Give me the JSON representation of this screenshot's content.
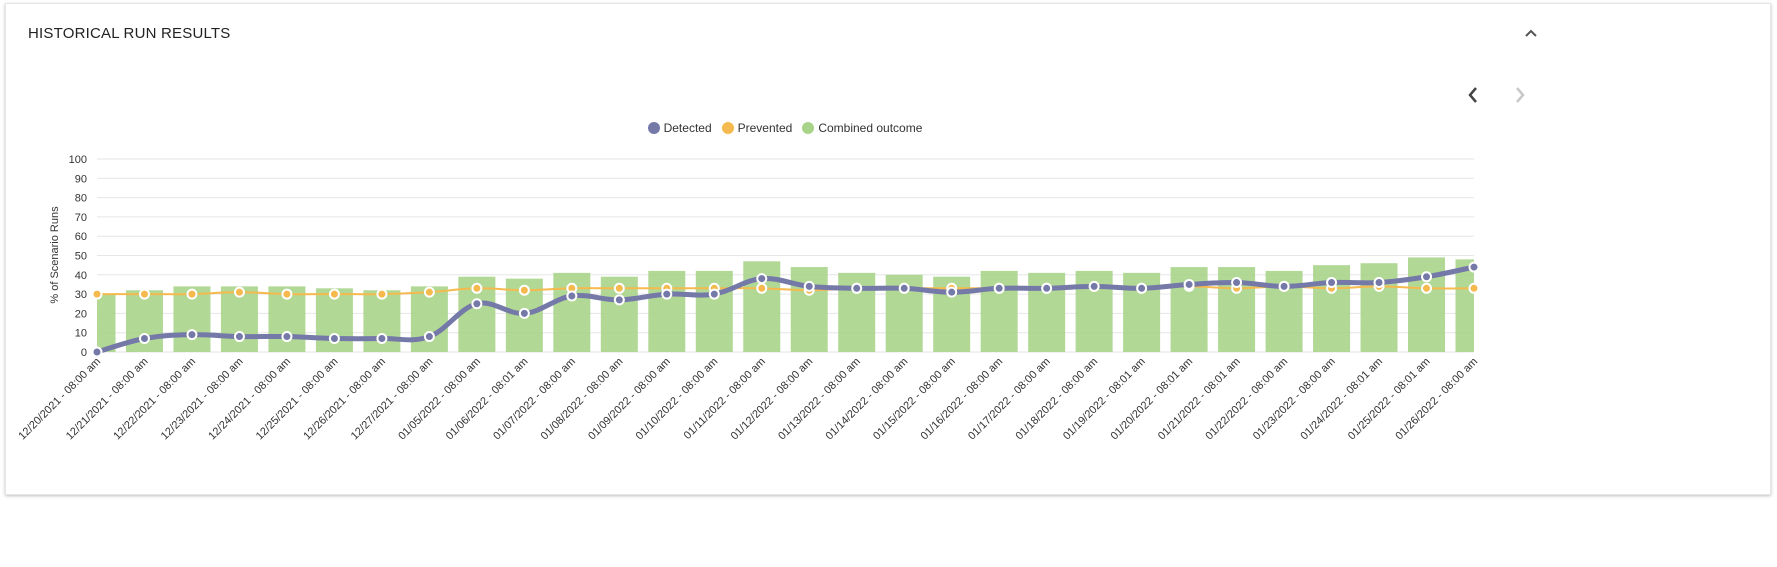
{
  "panel": {
    "title": "HISTORICAL RUN RESULTS"
  },
  "icons": {
    "collapse": "chevron-up-icon",
    "prev": "chevron-left-icon",
    "next": "chevron-right-icon"
  },
  "chart_data": {
    "type": "bar+line",
    "ylabel": "% of Scenario Runs",
    "xlabel": "",
    "ylim": [
      0,
      100
    ],
    "yticks": [
      0,
      10,
      20,
      30,
      40,
      50,
      60,
      70,
      80,
      90,
      100
    ],
    "grid": true,
    "legend_position": "top-center",
    "categories": [
      "12/20/2021 - 08:00 am",
      "12/21/2021 - 08:00 am",
      "12/22/2021 - 08:00 am",
      "12/23/2021 - 08:00 am",
      "12/24/2021 - 08:00 am",
      "12/25/2021 - 08:00 am",
      "12/26/2021 - 08:00 am",
      "12/27/2021 - 08:00 am",
      "01/05/2022 - 08:00 am",
      "01/06/2022 - 08:01 am",
      "01/07/2022 - 08:00 am",
      "01/08/2022 - 08:00 am",
      "01/09/2022 - 08:00 am",
      "01/10/2022 - 08:00 am",
      "01/11/2022 - 08:00 am",
      "01/12/2022 - 08:00 am",
      "01/13/2022 - 08:00 am",
      "01/14/2022 - 08:00 am",
      "01/15/2022 - 08:00 am",
      "01/16/2022 - 08:00 am",
      "01/17/2022 - 08:00 am",
      "01/18/2022 - 08:00 am",
      "01/19/2022 - 08:01 am",
      "01/20/2022 - 08:01 am",
      "01/21/2022 - 08:01 am",
      "01/22/2022 - 08:00 am",
      "01/23/2022 - 08:00 am",
      "01/24/2022 - 08:01 am",
      "01/25/2022 - 08:01 am",
      "01/26/2022 - 08:00 am"
    ],
    "series": [
      {
        "name": "Detected",
        "type": "line",
        "color": "#7479a8",
        "values": [
          0,
          7,
          9,
          8,
          8,
          7,
          7,
          8,
          25,
          20,
          29,
          27,
          30,
          30,
          38,
          34,
          33,
          33,
          31,
          33,
          33,
          34,
          33,
          35,
          36,
          34,
          36,
          36,
          39,
          44
        ]
      },
      {
        "name": "Prevented",
        "type": "line",
        "color": "#f5b94d",
        "values": [
          30,
          30,
          30,
          31,
          30,
          30,
          30,
          31,
          33,
          32,
          33,
          33,
          33,
          33,
          33,
          32,
          33,
          33,
          33,
          33,
          33,
          34,
          33,
          34,
          33,
          34,
          33,
          34,
          33,
          33
        ]
      },
      {
        "name": "Combined outcome",
        "type": "bar",
        "color": "#a8d489",
        "values": [
          30,
          32,
          34,
          34,
          34,
          33,
          32,
          34,
          39,
          38,
          41,
          39,
          42,
          42,
          47,
          44,
          41,
          40,
          39,
          42,
          41,
          42,
          41,
          44,
          44,
          42,
          45,
          46,
          49,
          48
        ]
      }
    ]
  }
}
